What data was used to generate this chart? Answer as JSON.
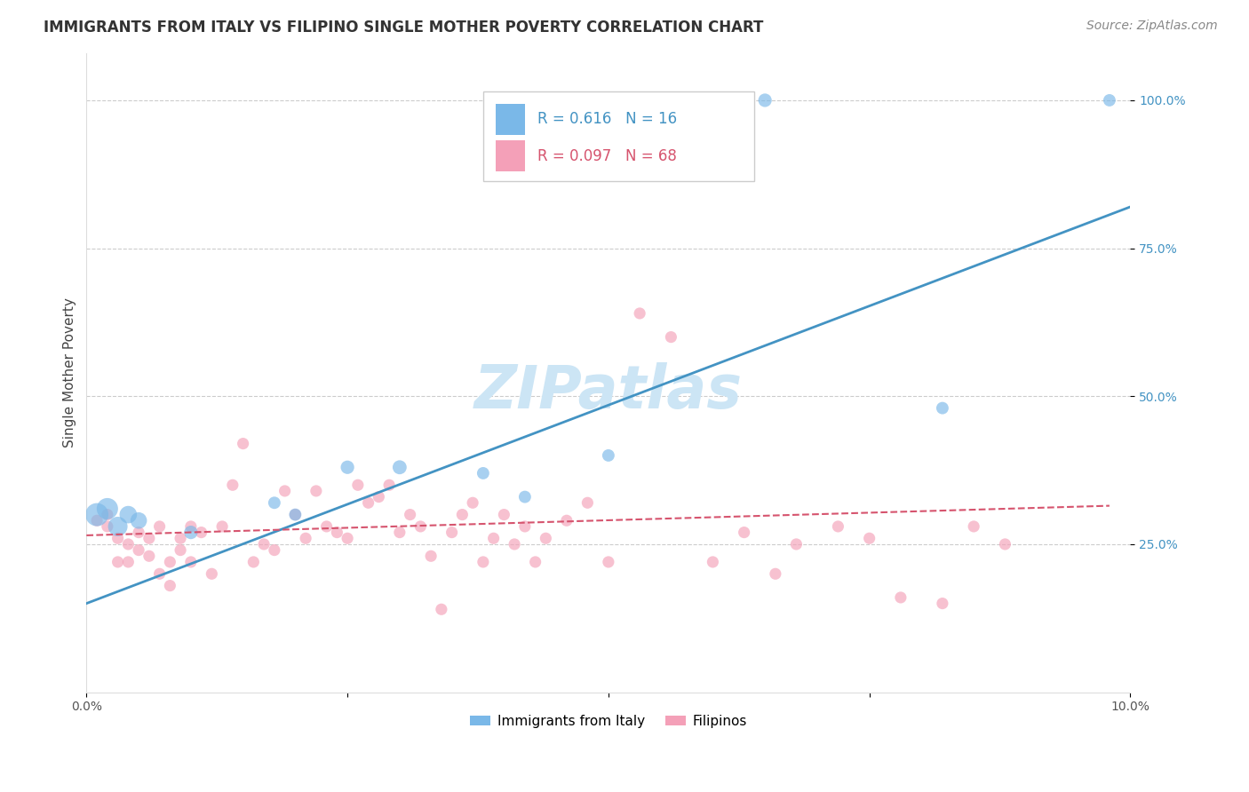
{
  "title": "IMMIGRANTS FROM ITALY VS FILIPINO SINGLE MOTHER POVERTY CORRELATION CHART",
  "source": "Source: ZipAtlas.com",
  "ylabel": "Single Mother Poverty",
  "xlim": [
    0.0,
    0.1
  ],
  "ylim": [
    0.0,
    1.08
  ],
  "yticks": [
    0.25,
    0.5,
    0.75,
    1.0
  ],
  "ytick_labels": [
    "25.0%",
    "50.0%",
    "75.0%",
    "100.0%"
  ],
  "xticks": [
    0.0,
    0.025,
    0.05,
    0.075,
    0.1
  ],
  "xtick_labels": [
    "0.0%",
    "",
    "",
    "",
    "10.0%"
  ],
  "grid_color": "#cccccc",
  "watermark": "ZIPatlas",
  "legend_R_blue": "0.616",
  "legend_N_blue": "16",
  "legend_R_pink": "0.097",
  "legend_N_pink": "68",
  "blue_scatter_x": [
    0.001,
    0.002,
    0.003,
    0.004,
    0.005,
    0.01,
    0.018,
    0.02,
    0.025,
    0.03,
    0.038,
    0.042,
    0.05,
    0.065,
    0.082,
    0.098
  ],
  "blue_scatter_y": [
    0.3,
    0.31,
    0.28,
    0.3,
    0.29,
    0.27,
    0.32,
    0.3,
    0.38,
    0.38,
    0.37,
    0.33,
    0.4,
    1.0,
    0.48,
    1.0
  ],
  "blue_scatter_sizes": [
    350,
    300,
    250,
    200,
    180,
    120,
    100,
    100,
    120,
    130,
    100,
    100,
    100,
    120,
    100,
    100
  ],
  "pink_scatter_x": [
    0.001,
    0.002,
    0.002,
    0.003,
    0.003,
    0.004,
    0.004,
    0.005,
    0.005,
    0.006,
    0.006,
    0.007,
    0.007,
    0.008,
    0.008,
    0.009,
    0.009,
    0.01,
    0.01,
    0.011,
    0.012,
    0.013,
    0.014,
    0.015,
    0.016,
    0.017,
    0.018,
    0.019,
    0.02,
    0.021,
    0.022,
    0.023,
    0.024,
    0.025,
    0.026,
    0.027,
    0.028,
    0.029,
    0.03,
    0.031,
    0.032,
    0.033,
    0.034,
    0.035,
    0.036,
    0.037,
    0.038,
    0.039,
    0.04,
    0.041,
    0.042,
    0.043,
    0.044,
    0.046,
    0.048,
    0.05,
    0.053,
    0.056,
    0.06,
    0.063,
    0.066,
    0.068,
    0.072,
    0.075,
    0.078,
    0.082,
    0.085,
    0.088
  ],
  "pink_scatter_y": [
    0.29,
    0.28,
    0.3,
    0.26,
    0.22,
    0.25,
    0.22,
    0.27,
    0.24,
    0.26,
    0.23,
    0.2,
    0.28,
    0.18,
    0.22,
    0.26,
    0.24,
    0.28,
    0.22,
    0.27,
    0.2,
    0.28,
    0.35,
    0.42,
    0.22,
    0.25,
    0.24,
    0.34,
    0.3,
    0.26,
    0.34,
    0.28,
    0.27,
    0.26,
    0.35,
    0.32,
    0.33,
    0.35,
    0.27,
    0.3,
    0.28,
    0.23,
    0.14,
    0.27,
    0.3,
    0.32,
    0.22,
    0.26,
    0.3,
    0.25,
    0.28,
    0.22,
    0.26,
    0.29,
    0.32,
    0.22,
    0.64,
    0.6,
    0.22,
    0.27,
    0.2,
    0.25,
    0.28,
    0.26,
    0.16,
    0.15,
    0.28,
    0.25
  ],
  "blue_line_x": [
    0.0,
    0.1
  ],
  "blue_line_y": [
    0.15,
    0.82
  ],
  "pink_line_x": [
    0.0,
    0.098
  ],
  "pink_line_y": [
    0.265,
    0.315
  ],
  "blue_color": "#7ab8e8",
  "pink_color": "#f4a0b8",
  "blue_line_color": "#4393c3",
  "pink_line_color": "#d6546e",
  "title_fontsize": 12,
  "source_fontsize": 10,
  "ylabel_fontsize": 11,
  "watermark_fontsize": 48,
  "watermark_color": "#cce5f5",
  "background_color": "#ffffff"
}
